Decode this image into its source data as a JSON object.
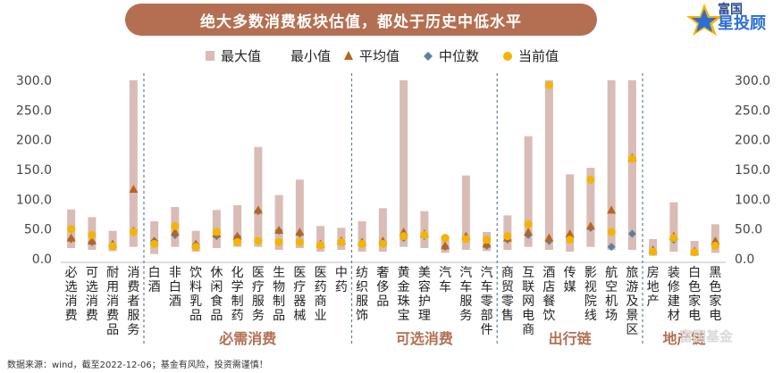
{
  "chart_data": {
    "type": "range-dot",
    "title": "绝大多数消费板块估值，都处于历史中低水平",
    "ylim": [
      0,
      300
    ],
    "yticks": [
      "0.0",
      "50.0",
      "100.0",
      "150.0",
      "200.0",
      "250.0",
      "300.0"
    ],
    "legend": [
      "最大值",
      "最小值",
      "平均值",
      "中位数",
      "当前值"
    ],
    "colors": {
      "range": "#d9bcb5",
      "mean": "#b9651e",
      "median": "#5f7f9f",
      "current": "#f5b400",
      "divider": "#5f7f9f",
      "group_label": "#b46f52"
    },
    "categories": [
      "必选消费",
      "可选消费",
      "耐用消费品",
      "消费者服务",
      "白酒",
      "非白酒",
      "饮料乳品",
      "休闲食品",
      "化学制药",
      "医疗服务",
      "生物制品",
      "医疗器械",
      "医药商业",
      "中药",
      "纺织服饰",
      "奢侈品",
      "黄金珠宝",
      "美容护理",
      "汽车",
      "汽车服务",
      "汽车零部件",
      "商贸零售",
      "互联网电商",
      "酒店餐饮",
      "传媒",
      "影视院线",
      "航空机场",
      "旅游及景区",
      "房地产",
      "装修建材",
      "白色家电",
      "黑色家电"
    ],
    "max": [
      83,
      70,
      47,
      300,
      63,
      87,
      47,
      82,
      90,
      188,
      107,
      133,
      55,
      52,
      63,
      85,
      300,
      80,
      38,
      140,
      45,
      73,
      206,
      300,
      142,
      153,
      300,
      300,
      33,
      95,
      30,
      58
    ],
    "min": [
      18,
      15,
      13,
      20,
      8,
      20,
      12,
      18,
      20,
      20,
      15,
      18,
      12,
      15,
      12,
      12,
      20,
      18,
      10,
      15,
      13,
      15,
      20,
      15,
      12,
      20,
      15,
      15,
      5,
      12,
      5,
      10
    ],
    "mean": [
      35,
      30,
      25,
      117,
      30,
      45,
      25,
      42,
      38,
      82,
      48,
      45,
      25,
      30,
      28,
      30,
      45,
      42,
      22,
      38,
      25,
      35,
      45,
      35,
      42,
      55,
      82,
      170,
      15,
      38,
      13,
      30
    ],
    "median": [
      33,
      28,
      23,
      47,
      30,
      40,
      24,
      38,
      37,
      80,
      47,
      42,
      25,
      30,
      27,
      28,
      35,
      38,
      20,
      35,
      22,
      32,
      40,
      30,
      35,
      52,
      20,
      42,
      14,
      32,
      12,
      25
    ],
    "current": [
      50,
      40,
      21,
      45,
      25,
      55,
      20,
      45,
      28,
      30,
      28,
      28,
      23,
      28,
      25,
      25,
      38,
      40,
      35,
      33,
      32,
      38,
      58,
      292,
      32,
      133,
      45,
      168,
      12,
      35,
      11,
      22
    ],
    "groups": [
      {
        "label": "必需消费",
        "from": 4,
        "to": 13
      },
      {
        "label": "可选消费",
        "from": 14,
        "to": 20
      },
      {
        "label": "出行链",
        "from": 21,
        "to": 27
      },
      {
        "label": "地产链",
        "from": 28,
        "to": 31
      }
    ]
  },
  "source_note": "数据来源：wind，截至2022-12-06；基金有风险，投资需谨慎！",
  "logo": {
    "line1": "富国",
    "line2": "星投顾"
  },
  "watermark": "富国基金"
}
